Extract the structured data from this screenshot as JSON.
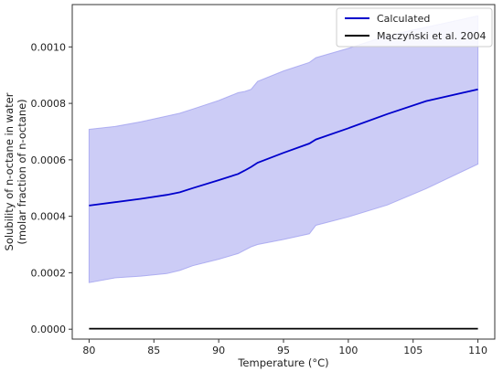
{
  "chart_data": {
    "type": "line",
    "title": "",
    "xlabel": "Temperature (°C)",
    "ylabel_lines": [
      "Solubility of n-octane in water",
      "(molar fraction of n-octane)"
    ],
    "xlim": [
      78.7,
      111.3
    ],
    "ylim": [
      -3.5e-05,
      0.00115
    ],
    "xticks": [
      80,
      85,
      90,
      95,
      100,
      105,
      110
    ],
    "xtick_labels": [
      "80",
      "85",
      "90",
      "95",
      "100",
      "105",
      "110"
    ],
    "yticks": [
      0,
      0.0002,
      0.0004,
      0.0006,
      0.0008,
      0.001
    ],
    "ytick_labels": [
      "0.0000",
      "0.0002",
      "0.0004",
      "0.0006",
      "0.0008",
      "0.0010"
    ],
    "grid": false,
    "legend_position": "top-right",
    "series": [
      {
        "name": "Calculated",
        "color": "#0000cc",
        "x": [
          80,
          82,
          84,
          86,
          87,
          88,
          90,
          91.5,
          92,
          92.5,
          93,
          95,
          97,
          97.5,
          100,
          103,
          106,
          110
        ],
        "y": [
          0.000438,
          0.00045,
          0.000462,
          0.000476,
          0.000485,
          0.0005,
          0.000528,
          0.00055,
          0.000562,
          0.000575,
          0.00059,
          0.000625,
          0.000658,
          0.000672,
          0.000712,
          0.000762,
          0.000808,
          0.00085
        ]
      },
      {
        "name": "Mączyński et al. 2004",
        "color": "#000000",
        "x": [
          80,
          110
        ],
        "y": [
          2e-06,
          2e-06
        ]
      }
    ],
    "band": {
      "color": "#9999ee",
      "x": [
        80,
        82,
        84,
        86,
        87,
        88,
        90,
        91.5,
        92,
        92.5,
        93,
        95,
        97,
        97.5,
        100,
        103,
        106,
        110
      ],
      "upper": [
        0.000708,
        0.000718,
        0.000735,
        0.000755,
        0.000765,
        0.00078,
        0.00081,
        0.000838,
        0.000842,
        0.00085,
        0.000878,
        0.000915,
        0.000945,
        0.000962,
        0.000995,
        0.00104,
        0.00107,
        0.00111
      ],
      "lower": [
        0.000165,
        0.000182,
        0.000188,
        0.000197,
        0.000208,
        0.000225,
        0.000248,
        0.000268,
        0.00028,
        0.000292,
        0.0003,
        0.000318,
        0.000338,
        0.000368,
        0.000398,
        0.00044,
        0.000498,
        0.000585
      ]
    }
  }
}
